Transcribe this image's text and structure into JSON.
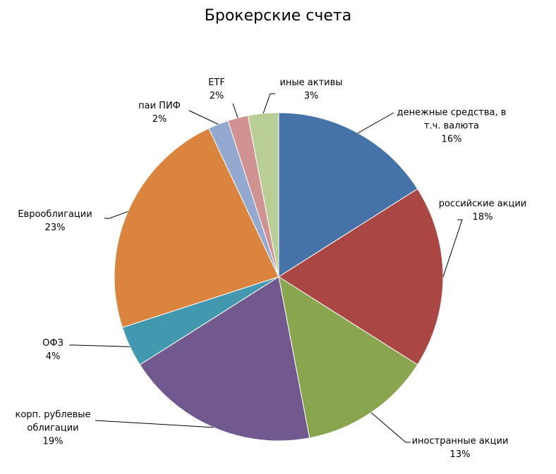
{
  "chart_data": {
    "type": "pie",
    "title": "Брокерские счета",
    "categories": [
      "денежные средства, в т.ч. валюта",
      "российские акции",
      "иностранные акции",
      "корп. рублевые облигации",
      "ОФЗ",
      "Еврооблигации",
      "паи ПИФ",
      "ETF",
      "иные активы"
    ],
    "values": [
      16,
      18,
      13,
      19,
      4,
      23,
      2,
      2,
      3
    ],
    "value_labels": [
      "16%",
      "18%",
      "13%",
      "19%",
      "4%",
      "23%",
      "2%",
      "2%",
      "3%"
    ],
    "colors": [
      "#4572a7",
      "#aa4643",
      "#89a54e",
      "#71588f",
      "#4198af",
      "#db843d",
      "#93a9cf",
      "#d19392",
      "#b9cd96"
    ]
  }
}
